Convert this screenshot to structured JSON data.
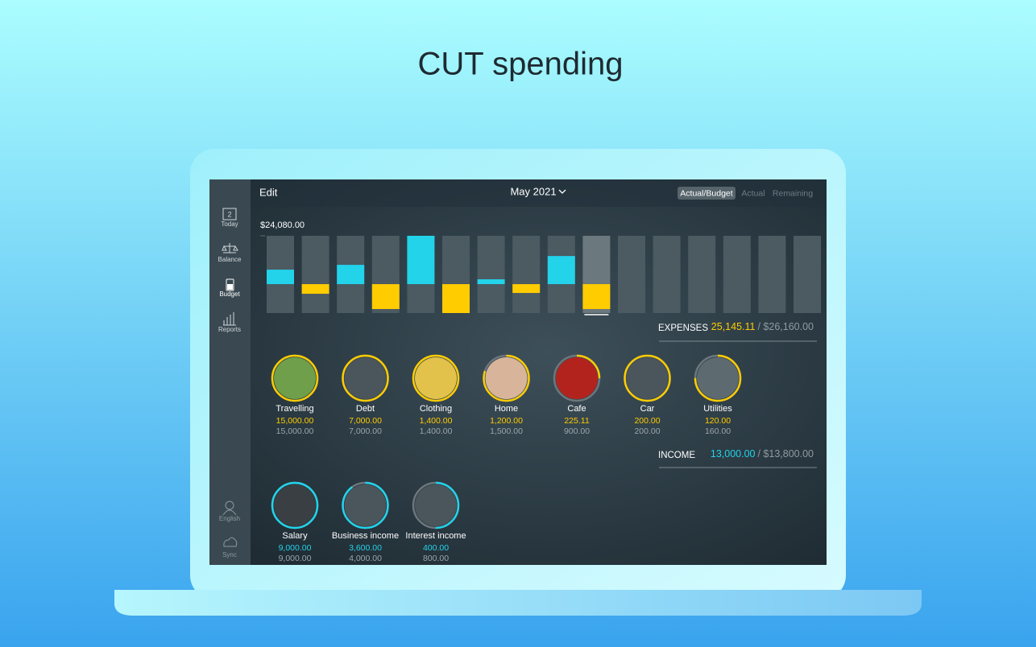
{
  "headline": "CUT spending",
  "sidebar": {
    "today_day": "2",
    "items": [
      "Today",
      "Balance",
      "Budget",
      "Reports"
    ],
    "bottom": [
      "English",
      "Sync"
    ]
  },
  "toolbar": {
    "edit": "Edit",
    "month": "May 2021",
    "tabs": [
      "Actual/Budget",
      "Actual",
      "Remaining"
    ]
  },
  "chart_data": {
    "type": "bar",
    "categories": [
      null,
      null,
      null,
      null,
      null,
      null,
      null,
      null,
      null,
      null,
      null,
      null,
      null,
      null,
      null,
      null
    ],
    "series": [
      {
        "color": "#22d3ea",
        "values": [
          7200,
          null,
          9600,
          null,
          24080,
          null,
          2400,
          null,
          14000,
          null,
          null,
          null,
          null,
          null,
          null,
          null
        ]
      },
      {
        "color": "#ffcc00",
        "values": [
          null,
          -4800,
          null,
          -12400,
          null,
          -14400,
          null,
          -4400,
          null,
          -12400,
          null,
          null,
          null,
          null,
          null,
          null
        ]
      }
    ],
    "ylim": [
      -14400,
      24080
    ],
    "yticks": [
      {
        "value": 24080,
        "label": "$24,080.00"
      }
    ]
  },
  "expenses": {
    "label": "EXPENSES",
    "actual": "25,145.11",
    "budget": "/ $26,160.00",
    "items": [
      {
        "name": "Travelling",
        "actual": "15,000.00",
        "budget": "15,000.00"
      },
      {
        "name": "Debt",
        "actual": "7,000.00",
        "budget": "7,000.00"
      },
      {
        "name": "Clothing",
        "actual": "1,400.00",
        "budget": "1,400.00"
      },
      {
        "name": "Home",
        "actual": "1,200.00",
        "budget": "1,500.00"
      },
      {
        "name": "Cafe",
        "actual": "225.11",
        "budget": "900.00"
      },
      {
        "name": "Car",
        "actual": "200.00",
        "budget": "200.00"
      },
      {
        "name": "Utilities",
        "actual": "120.00",
        "budget": "160.00"
      }
    ]
  },
  "income": {
    "label": "INCOME",
    "actual": "13,000.00",
    "budget": "/ $13,800.00",
    "items": [
      {
        "name": "Salary",
        "actual": "9,000.00",
        "budget": "9,000.00"
      },
      {
        "name": "Business income",
        "actual": "3,600.00",
        "budget": "4,000.00"
      },
      {
        "name": "Interest income",
        "actual": "400.00",
        "budget": "800.00"
      }
    ]
  }
}
